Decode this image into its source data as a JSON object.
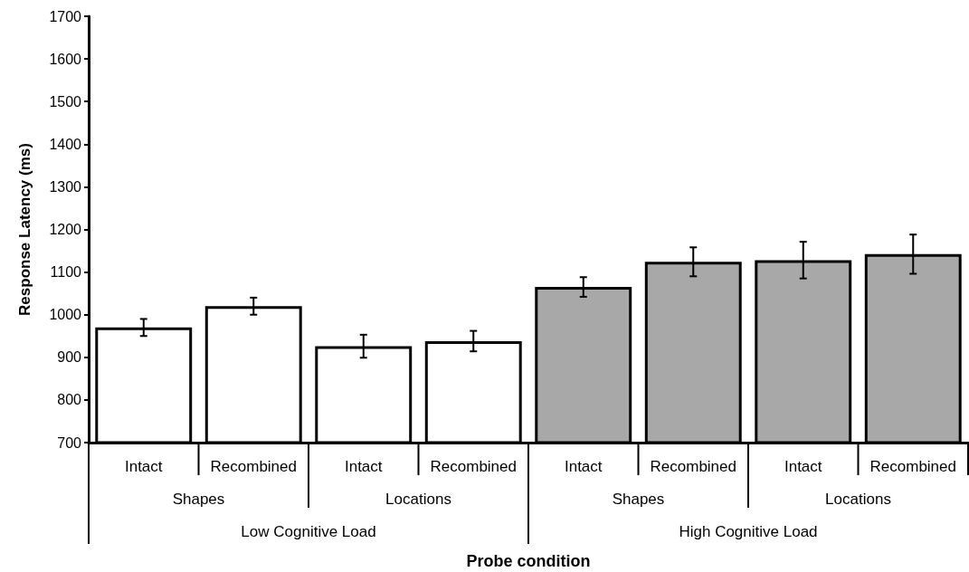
{
  "chart_data": {
    "type": "bar",
    "xlabel": "Probe condition",
    "ylabel": "Response Latency (ms)",
    "categories": [
      "Intact",
      "Recombined",
      "Intact",
      "Recombined",
      "Intact",
      "Recombined",
      "Intact",
      "Recombined"
    ],
    "values": [
      970,
      1020,
      926,
      938,
      1065,
      1124,
      1128,
      1142
    ],
    "errors": [
      20,
      20,
      27,
      24,
      23,
      34,
      43,
      46
    ],
    "colors": [
      "#ffffff",
      "#ffffff",
      "#ffffff",
      "#ffffff",
      "#a8a8a8",
      "#a8a8a8",
      "#a8a8a8",
      "#a8a8a8"
    ],
    "annotations": [
      "Shapes",
      "Locations",
      "Shapes",
      "Locations",
      "Low Cognitive Load",
      "High Cognitive Load"
    ],
    "ylim": [
      700,
      1700
    ],
    "yticks": [
      700,
      800,
      900,
      1000,
      1100,
      1200,
      1300,
      1400,
      1500,
      1600,
      1700
    ]
  }
}
